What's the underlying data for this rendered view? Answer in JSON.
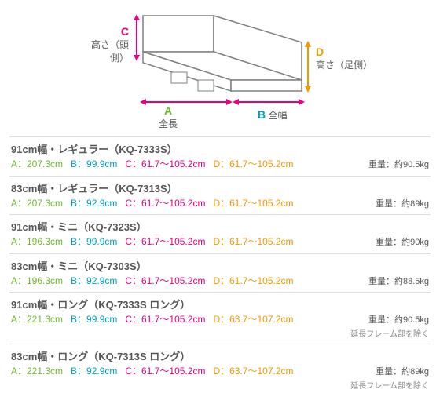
{
  "diagram": {
    "labels": {
      "c_letter": "C",
      "c_text": "高さ（頭側）",
      "d_letter": "D",
      "d_text": "高さ（足側）",
      "a_letter": "A",
      "a_text": "全長",
      "b_letter": "B",
      "b_text": "全幅"
    },
    "colors": {
      "A": "#6eb92b",
      "B": "#00a0c6",
      "C": "#e4007f",
      "D": "#f39800",
      "line": "#888888",
      "panel": "#ffffff",
      "frame": "#808080",
      "arrow": "#e4007f"
    }
  },
  "items": [
    {
      "title": "91cm幅・レギュラー（KQ-7333S）",
      "A": "A：207.3cm",
      "B": "B：99.9cm",
      "C": "C：61.7～105.2cm",
      "D": "D：61.7～105.2cm",
      "weight": "重量：約90.5kg",
      "note": ""
    },
    {
      "title": "83cm幅・レギュラー（KQ-7313S）",
      "A": "A：207.3cm",
      "B": "B：92.9cm",
      "C": "C：61.7～105.2cm",
      "D": "D：61.7～105.2cm",
      "weight": "重量：約89kg",
      "note": ""
    },
    {
      "title": "91cm幅・ミニ（KQ-7323S）",
      "A": "A：196.3cm",
      "B": "B：99.9cm",
      "C": "C：61.7～105.2cm",
      "D": "D：61.7～105.2cm",
      "weight": "重量：約90kg",
      "note": ""
    },
    {
      "title": "83cm幅・ミニ（KQ-7303S）",
      "A": "A：196.3cm",
      "B": "B：92.9cm",
      "C": "C：61.7～105.2cm",
      "D": "D：61.7～105.2cm",
      "weight": "重量：約88.5kg",
      "note": ""
    },
    {
      "title": "91cm幅・ロング（KQ-7333S ロング）",
      "A": "A：221.3cm",
      "B": "B：99.9cm",
      "C": "C：61.7～105.2cm",
      "D": "D：63.7～107.2cm",
      "weight": "重量：約90.5kg",
      "note": "延長フレーム部を除く"
    },
    {
      "title": "83cm幅・ロング（KQ-7313S ロング）",
      "A": "A：221.3cm",
      "B": "B：92.9cm",
      "C": "C：61.7～105.2cm",
      "D": "D：63.7～107.2cm",
      "weight": "重量：約89kg",
      "note": "延長フレーム部を除く"
    }
  ],
  "colors": {
    "A": "#6eb92b",
    "B": "#00a0c6",
    "C": "#e4007f",
    "D": "#f39800",
    "text": "#555555",
    "border": "#dddddd"
  }
}
